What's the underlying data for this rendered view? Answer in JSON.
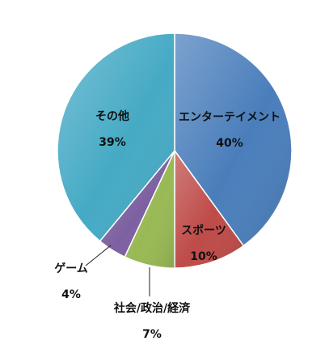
{
  "chart_data": {
    "type": "pie",
    "categories": [
      "エンターテイメント",
      "スポーツ",
      "社会/政治/経済",
      "ゲーム",
      "その他"
    ],
    "values": [
      40,
      10,
      7,
      4,
      39
    ],
    "value_labels": [
      "40%",
      "10%",
      "7%",
      "4%",
      "39%"
    ],
    "start_angle_deg": 0,
    "direction": "clockwise",
    "legend": "none",
    "colors": [
      "#4a7ebb",
      "#be4b48",
      "#98b954",
      "#7d60a0",
      "#46aac5"
    ]
  }
}
